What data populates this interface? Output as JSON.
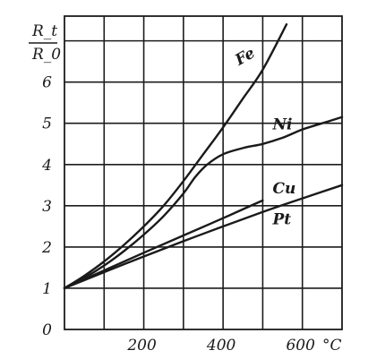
{
  "chart_data": {
    "type": "line",
    "ylabel_numerator": "R_t",
    "ylabel_denominator": "R_0",
    "xunit": "°C",
    "xlim": [
      0,
      700
    ],
    "ylim": [
      0,
      7.6
    ],
    "x_ticks": [
      200,
      400,
      600
    ],
    "x_tick_labels": [
      "200",
      "400",
      "600"
    ],
    "y_ticks": [
      0,
      1,
      2,
      3,
      4,
      5,
      6
    ],
    "y_tick_labels": [
      "0",
      "1",
      "2",
      "3",
      "4",
      "5",
      "6"
    ],
    "x_gridlines": [
      100,
      200,
      300,
      400,
      500,
      600
    ],
    "y_gridlines": [
      1,
      2,
      3,
      4,
      5,
      6,
      7
    ],
    "grid": true,
    "series": [
      {
        "name": "Fe",
        "x": [
          0,
          50,
          100,
          150,
          200,
          250,
          300,
          350,
          400,
          450,
          500,
          560
        ],
        "values": [
          1.0,
          1.3,
          1.65,
          2.05,
          2.5,
          3.0,
          3.6,
          4.25,
          4.9,
          5.6,
          6.3,
          7.4
        ]
      },
      {
        "name": "Ni",
        "x": [
          0,
          50,
          100,
          150,
          200,
          250,
          300,
          330,
          360,
          400,
          450,
          500,
          550,
          600,
          650,
          700
        ],
        "values": [
          1.0,
          1.25,
          1.55,
          1.9,
          2.3,
          2.75,
          3.3,
          3.7,
          4.0,
          4.25,
          4.4,
          4.5,
          4.65,
          4.85,
          5.0,
          5.15
        ]
      },
      {
        "name": "Cu",
        "x": [
          0,
          100,
          200,
          300,
          400,
          500
        ],
        "values": [
          1.0,
          1.43,
          1.86,
          2.28,
          2.7,
          3.13
        ]
      },
      {
        "name": "Pt",
        "x": [
          0,
          100,
          200,
          300,
          400,
          500,
          600,
          700
        ],
        "values": [
          1.0,
          1.39,
          1.77,
          2.14,
          2.5,
          2.85,
          3.18,
          3.5
        ]
      }
    ],
    "series_label_anchor": [
      {
        "x": 440,
        "y": 6.4
      },
      {
        "x": 525,
        "y": 4.85
      },
      {
        "x": 525,
        "y": 3.3
      },
      {
        "x": 525,
        "y": 2.55
      }
    ]
  }
}
